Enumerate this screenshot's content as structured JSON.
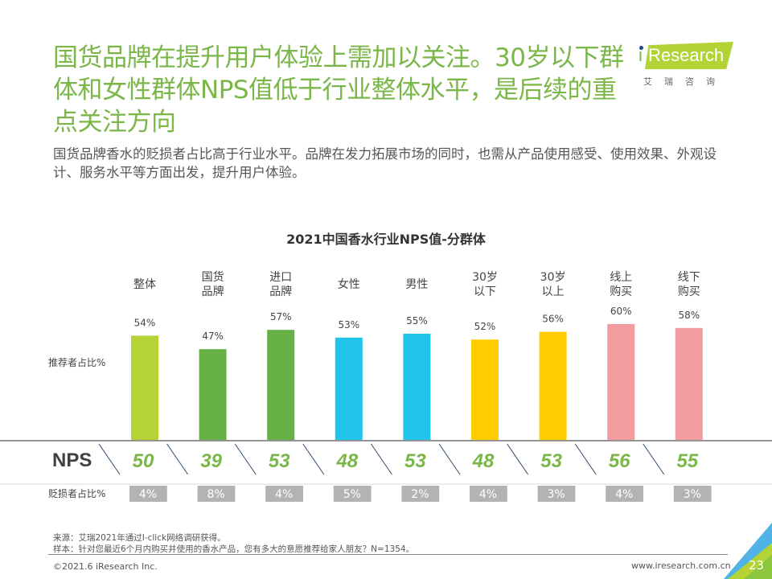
{
  "header": {
    "title": "国货品牌在提升用户体验上需加以关注。30岁以下群体和女性群体NPS值低于行业整体水平，是后续的重点关注方向",
    "subtitle": "国货品牌香水的贬损者占比高于行业水平。品牌在发力拓展市场的同时，也需从产品使用感受、使用效果、外观设计、服务水平等方面出发，提升用户体验。"
  },
  "logo": {
    "brand": "Research",
    "brand_prefix": "i",
    "chinese": "艾瑞咨询",
    "color": "#b2d235"
  },
  "row_labels": {
    "promoters": "推荐者占比%",
    "nps": "NPS",
    "detractors": "贬损者占比%"
  },
  "chart_data": {
    "type": "bar",
    "title": "2021中国香水行业NPS值-分群体",
    "categories": [
      "整体",
      "国货\n品牌",
      "进口\n品牌",
      "女性",
      "男性",
      "30岁\n以下",
      "30岁\n以上",
      "线上\n购买",
      "线下\n购买"
    ],
    "series": [
      {
        "name": "推荐者占比%",
        "unit": "%",
        "values": [
          54,
          47,
          57,
          53,
          55,
          52,
          56,
          60,
          58
        ]
      },
      {
        "name": "NPS",
        "values": [
          50,
          39,
          53,
          48,
          53,
          48,
          53,
          56,
          55
        ]
      },
      {
        "name": "贬损者占比%",
        "unit": "%",
        "values": [
          4,
          8,
          4,
          5,
          2,
          4,
          3,
          4,
          3
        ]
      }
    ],
    "bar_colors": [
      "#b5d334",
      "#66b045",
      "#66b045",
      "#23c4ec",
      "#23c4ec",
      "#ffcc00",
      "#ffcc00",
      "#f29c9f",
      "#f29c9f"
    ],
    "nps_color": "#7ab648",
    "detractor_box_color": "#b3b3b3",
    "xlabel": "",
    "ylabel": "推荐者占比%",
    "ylim": [
      0,
      60
    ],
    "grid": false,
    "legend": "none"
  },
  "footer": {
    "source": "来源：艾瑞2021年通过I-click网络调研获得。",
    "sample": "样本：针对您最近6个月内购买并使用的香水产品，您有多大的意愿推荐给家人朋友？N=1354。",
    "copyright": "©2021.6 iResearch Inc.",
    "website": "www.iresearch.com.cn",
    "page_number": "23"
  }
}
